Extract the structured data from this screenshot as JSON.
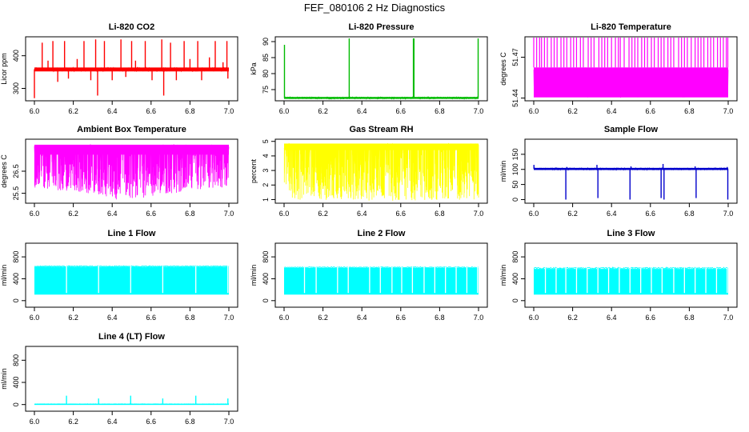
{
  "figure": {
    "title": "FEF_080106  2 Hz Diagnostics"
  },
  "chart_data": [
    {
      "type": "line",
      "title": "Li-820 CO2",
      "ylabel": "Licor ppm",
      "color": "#ff0000",
      "xlim": [
        6.0,
        7.0
      ],
      "xticks": [
        "6.0",
        "6.2",
        "6.4",
        "6.6",
        "6.8",
        "7.0"
      ],
      "ylim": [
        262,
        458
      ],
      "yticks": [
        300,
        400
      ],
      "ytick_labels": [
        "300",
        "400"
      ],
      "band": [
        352,
        364
      ],
      "spikes": [
        {
          "x": 6.0,
          "v": 270
        },
        {
          "x": 6.04,
          "v": 440
        },
        {
          "x": 6.07,
          "v": 385
        },
        {
          "x": 6.095,
          "v": 445
        },
        {
          "x": 6.12,
          "v": 320
        },
        {
          "x": 6.155,
          "v": 445
        },
        {
          "x": 6.175,
          "v": 330
        },
        {
          "x": 6.22,
          "v": 390
        },
        {
          "x": 6.255,
          "v": 445
        },
        {
          "x": 6.29,
          "v": 325
        },
        {
          "x": 6.315,
          "v": 450
        },
        {
          "x": 6.325,
          "v": 278
        },
        {
          "x": 6.36,
          "v": 445
        },
        {
          "x": 6.4,
          "v": 325
        },
        {
          "x": 6.445,
          "v": 450
        },
        {
          "x": 6.47,
          "v": 335
        },
        {
          "x": 6.5,
          "v": 445
        },
        {
          "x": 6.52,
          "v": 385
        },
        {
          "x": 6.57,
          "v": 445
        },
        {
          "x": 6.605,
          "v": 325
        },
        {
          "x": 6.655,
          "v": 450
        },
        {
          "x": 6.665,
          "v": 278
        },
        {
          "x": 6.7,
          "v": 440
        },
        {
          "x": 6.73,
          "v": 325
        },
        {
          "x": 6.77,
          "v": 445
        },
        {
          "x": 6.8,
          "v": 390
        },
        {
          "x": 6.84,
          "v": 445
        },
        {
          "x": 6.86,
          "v": 325
        },
        {
          "x": 6.9,
          "v": 395
        },
        {
          "x": 6.93,
          "v": 445
        },
        {
          "x": 6.97,
          "v": 380
        },
        {
          "x": 6.99,
          "v": 445
        },
        {
          "x": 6.995,
          "v": 330
        }
      ]
    },
    {
      "type": "line",
      "title": "Li-820 Pressure",
      "ylabel": "kPa",
      "color": "#00bb00",
      "xlim": [
        6.0,
        7.0
      ],
      "xticks": [
        "6.0",
        "6.2",
        "6.4",
        "6.6",
        "6.8",
        "7.0"
      ],
      "ylim": [
        71.5,
        91.5
      ],
      "yticks": [
        75,
        80,
        85,
        90
      ],
      "ytick_labels": [
        "75",
        "80",
        "85",
        "90"
      ],
      "band": [
        72.1,
        72.7
      ],
      "spikes": [
        {
          "x": 6.002,
          "v": 89
        },
        {
          "x": 6.335,
          "v": 91
        },
        {
          "x": 6.665,
          "v": 91
        },
        {
          "x": 6.668,
          "v": 91
        },
        {
          "x": 6.998,
          "v": 91
        }
      ]
    },
    {
      "type": "line",
      "title": "Li-820 Temperature",
      "ylabel": "degrees C",
      "color": "#ff00ff",
      "xlim": [
        6.0,
        7.0
      ],
      "xticks": [
        "6.0",
        "6.2",
        "6.4",
        "6.6",
        "6.8",
        "7.0"
      ],
      "ylim": [
        51.438,
        51.485
      ],
      "yticks": [
        51.44,
        51.47
      ],
      "ytick_labels": [
        "51.44",
        "51.47"
      ],
      "band": [
        51.4405,
        51.4625
      ],
      "upper": 51.485,
      "upper_x": [
        6.0,
        6.015,
        6.03,
        6.04,
        6.055,
        6.07,
        6.09,
        6.105,
        6.12,
        6.14,
        6.155,
        6.17,
        6.19,
        6.205,
        6.22,
        6.24,
        6.255,
        6.28,
        6.295,
        6.31,
        6.335,
        6.35,
        6.365,
        6.38,
        6.4,
        6.42,
        6.435,
        6.445,
        6.465,
        6.49,
        6.505,
        6.52,
        6.535,
        6.555,
        6.57,
        6.585,
        6.605,
        6.62,
        6.64,
        6.655,
        6.67,
        6.69,
        6.705,
        6.72,
        6.745,
        6.76,
        6.775,
        6.79,
        6.81,
        6.83,
        6.845,
        6.86,
        6.875,
        6.895,
        6.91,
        6.925,
        6.945,
        6.96,
        6.975,
        6.99,
        6.998
      ]
    },
    {
      "type": "line",
      "title": "Ambient Box Temperature",
      "ylabel": "degrees C",
      "color": "#ff00ff",
      "xlim": [
        6.0,
        7.0
      ],
      "xticks": [
        "6.0",
        "6.2",
        "6.4",
        "6.6",
        "6.8",
        "7.0"
      ],
      "ylim": [
        25.05,
        27.95
      ],
      "yticks": [
        25.5,
        26.5
      ],
      "ytick_labels": [
        "25.5",
        "26.5"
      ],
      "upper_band": [
        27.25,
        27.7
      ],
      "low_level": [
        {
          "x": 6.0,
          "v": 25.7
        },
        {
          "x": 6.2,
          "v": 25.6
        },
        {
          "x": 6.35,
          "v": 25.4
        },
        {
          "x": 6.45,
          "v": 25.15
        },
        {
          "x": 6.55,
          "v": 25.25
        },
        {
          "x": 6.7,
          "v": 25.5
        },
        {
          "x": 6.85,
          "v": 25.6
        },
        {
          "x": 7.0,
          "v": 25.75
        }
      ]
    },
    {
      "type": "line",
      "title": "Gas Stream RH",
      "ylabel": "percent",
      "color": "#ffff00",
      "xlim": [
        6.0,
        7.0
      ],
      "xticks": [
        "6.0",
        "6.2",
        "6.4",
        "6.6",
        "6.8",
        "7.0"
      ],
      "ylim": [
        0.75,
        5.15
      ],
      "yticks": [
        1,
        2,
        3,
        4,
        5
      ],
      "ytick_labels": [
        "1",
        "2",
        "3",
        "4",
        "5"
      ],
      "upper_band": [
        4.4,
        4.85
      ],
      "low_level": [
        {
          "x": 6.0,
          "v": 1.0
        },
        {
          "x": 6.5,
          "v": 0.9
        },
        {
          "x": 7.0,
          "v": 1.0
        }
      ]
    },
    {
      "type": "line",
      "title": "Sample Flow",
      "ylabel": "ml/min",
      "color": "#0000cc",
      "xlim": [
        6.0,
        7.0
      ],
      "xticks": [
        "6.0",
        "6.2",
        "6.4",
        "6.6",
        "6.8",
        "7.0"
      ],
      "ylim": [
        -12,
        200
      ],
      "yticks": [
        0,
        50,
        100,
        150
      ],
      "ytick_labels": [
        "0",
        "50",
        "100",
        "150"
      ],
      "band": [
        98,
        105
      ],
      "spikes": [
        {
          "x": 6.001,
          "v": 115
        },
        {
          "x": 6.165,
          "v": 0
        },
        {
          "x": 6.17,
          "v": 108
        },
        {
          "x": 6.325,
          "v": 115
        },
        {
          "x": 6.33,
          "v": 5
        },
        {
          "x": 6.495,
          "v": 0
        },
        {
          "x": 6.5,
          "v": 110
        },
        {
          "x": 6.655,
          "v": 5
        },
        {
          "x": 6.665,
          "v": 118
        },
        {
          "x": 6.67,
          "v": 0
        },
        {
          "x": 6.83,
          "v": 110
        },
        {
          "x": 6.835,
          "v": 5
        },
        {
          "x": 6.995,
          "v": 108
        },
        {
          "x": 6.998,
          "v": 0
        }
      ]
    },
    {
      "type": "line",
      "title": "Line 1 Flow",
      "ylabel": "ml/min",
      "color": "#00ffff",
      "xlim": [
        6.0,
        7.0
      ],
      "xticks": [
        "6.0",
        "6.2",
        "6.4",
        "6.6",
        "6.8",
        "7.0"
      ],
      "ylim": [
        -120,
        1050
      ],
      "yticks": [
        0,
        400,
        800
      ],
      "ytick_labels": [
        "0",
        "400",
        "800"
      ],
      "band": [
        110,
        620
      ],
      "upper": 630,
      "gaps": [
        6.165,
        6.33,
        6.495,
        6.66,
        6.83,
        6.995
      ]
    },
    {
      "type": "line",
      "title": "Line 2 Flow",
      "ylabel": "ml/min",
      "color": "#00ffff",
      "xlim": [
        6.0,
        7.0
      ],
      "xticks": [
        "6.0",
        "6.2",
        "6.4",
        "6.6",
        "6.8",
        "7.0"
      ],
      "ylim": [
        -120,
        1050
      ],
      "yticks": [
        0,
        400,
        800
      ],
      "ytick_labels": [
        "0",
        "400",
        "800"
      ],
      "band": [
        110,
        600
      ],
      "upper": 610,
      "gaps": [
        6.105,
        6.165,
        6.275,
        6.33,
        6.44,
        6.495,
        6.555,
        6.605,
        6.66,
        6.72,
        6.775,
        6.83,
        6.885,
        6.94,
        6.995
      ]
    },
    {
      "type": "line",
      "title": "Line 3 Flow",
      "ylabel": "ml/min",
      "color": "#00ffff",
      "xlim": [
        6.0,
        7.0
      ],
      "xticks": [
        "6.0",
        "6.2",
        "6.4",
        "6.6",
        "6.8",
        "7.0"
      ],
      "ylim": [
        -120,
        1050
      ],
      "yticks": [
        0,
        400,
        800
      ],
      "ytick_labels": [
        "0",
        "400",
        "800"
      ],
      "band": [
        110,
        580
      ],
      "upper": 600,
      "gaps": [
        6.06,
        6.115,
        6.165,
        6.22,
        6.275,
        6.33,
        6.385,
        6.44,
        6.495,
        6.55,
        6.605,
        6.66,
        6.72,
        6.775,
        6.83,
        6.885,
        6.94,
        6.995
      ]
    },
    {
      "type": "line",
      "title": "Line 4 (LT) Flow",
      "ylabel": "ml/min",
      "color": "#00ffff",
      "xlim": [
        6.0,
        7.0
      ],
      "xticks": [
        "6.0",
        "6.2",
        "6.4",
        "6.6",
        "6.8",
        "7.0"
      ],
      "ylim": [
        -120,
        1050
      ],
      "yticks": [
        0,
        400,
        800
      ],
      "ytick_labels": [
        "0",
        "400",
        "800"
      ],
      "band": [
        5,
        15
      ],
      "spikes": [
        {
          "x": 6.165,
          "v": 160
        },
        {
          "x": 6.33,
          "v": 110
        },
        {
          "x": 6.495,
          "v": 160
        },
        {
          "x": 6.66,
          "v": 110
        },
        {
          "x": 6.83,
          "v": 160
        },
        {
          "x": 6.995,
          "v": 110
        }
      ]
    }
  ]
}
